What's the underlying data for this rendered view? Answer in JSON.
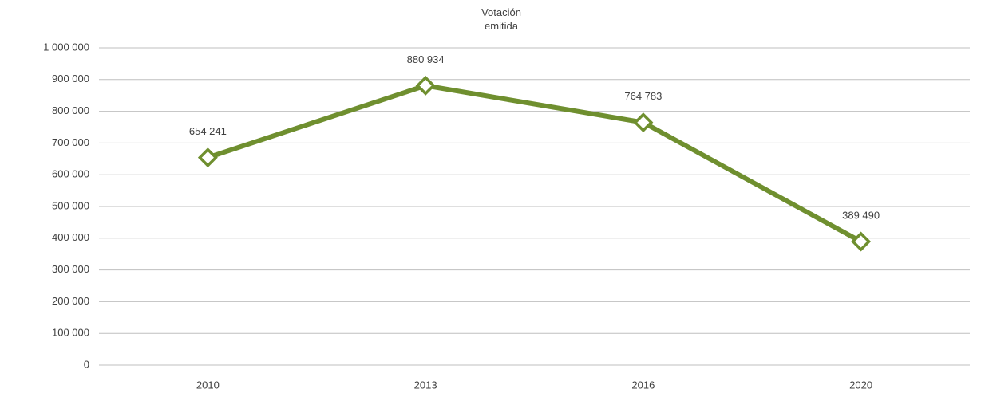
{
  "chart_data": {
    "type": "line",
    "title": "Votación emitida",
    "categories": [
      "2010",
      "2013",
      "2016",
      "2020"
    ],
    "values": [
      654241,
      880934,
      764783,
      389490
    ],
    "value_labels": [
      "654 241",
      "880 934",
      "764 783",
      "389 490"
    ],
    "color": "#6f8f2f",
    "ylim": [
      0,
      1000000
    ],
    "yticks": [
      0,
      {
        "value": 100000,
        "label": "100 000"
      },
      {
        "value": 200000,
        "label": "200 000"
      },
      {
        "value": 300000,
        "label": "300 000"
      },
      {
        "value": 400000,
        "label": "400 000"
      },
      {
        "value": 500000,
        "label": "500 000"
      },
      {
        "value": 600000,
        "label": "600 000"
      },
      {
        "value": 700000,
        "label": "700 000"
      },
      {
        "value": 800000,
        "label": "800 000"
      },
      {
        "value": 900000,
        "label": "900 000"
      },
      {
        "value": 1000000,
        "label": "1 000 000"
      }
    ],
    "grid": true
  }
}
